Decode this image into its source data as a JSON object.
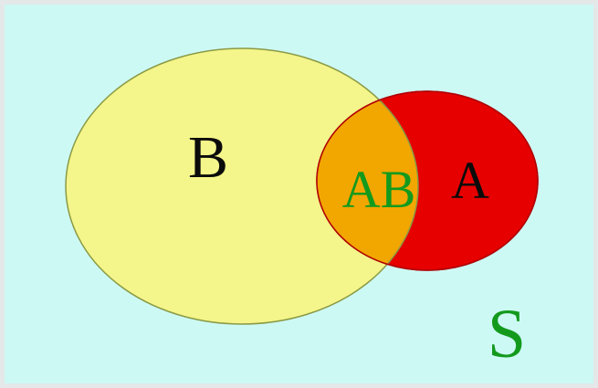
{
  "diagram": {
    "type": "venn",
    "universe_label": "S",
    "set_b_label": "B",
    "set_a_label": "A",
    "intersection_label": "AB",
    "colors": {
      "universe_background": "#cdf9f5",
      "outer_border": "#e4e8e8",
      "set_b_fill": "#f4f58a",
      "set_a_fill": "#e60000",
      "intersection_fill": "#f2a600",
      "label_dark": "#0b0b0b",
      "label_green": "#139a1d"
    }
  }
}
